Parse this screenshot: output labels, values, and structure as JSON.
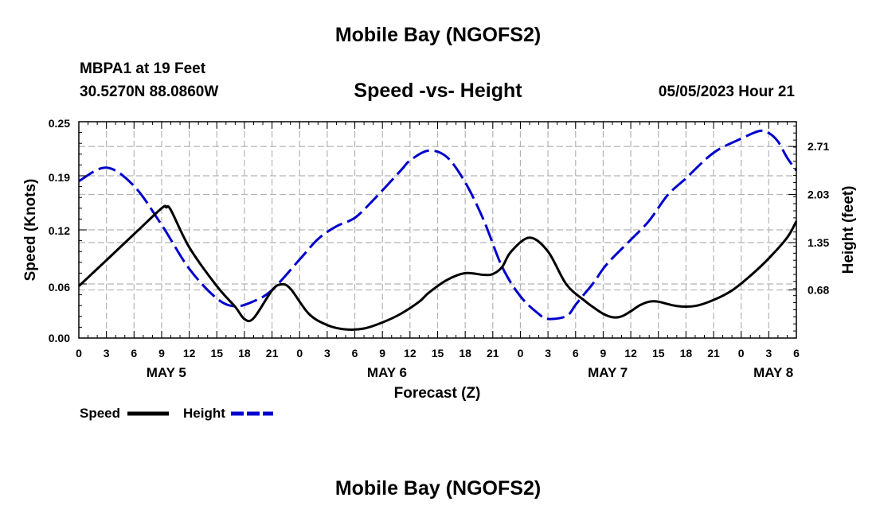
{
  "header": {
    "title": "Mobile Bay (NGOFS2)",
    "station": "MBPA1 at 19 Feet",
    "coordinates": "30.5270N  88.0860W",
    "subtitle": "Speed -vs- Height",
    "datetime": "05/05/2023 Hour 21"
  },
  "footer": {
    "title": "Mobile Bay (NGOFS2)"
  },
  "chart_data": {
    "type": "line",
    "title": "Speed -vs- Height",
    "xlabel": "Forecast (Z)",
    "ylabel": "Speed (Knots)",
    "y2label": "Height (feet)",
    "xlim": [
      0,
      78
    ],
    "ylim": [
      0,
      0.25
    ],
    "y2lim": [
      0,
      3.06
    ],
    "yticks": [
      "0.00",
      "0.06",
      "0.12",
      "0.19",
      "0.25"
    ],
    "y2ticks": [
      "0.68",
      "1.35",
      "2.03",
      "2.71"
    ],
    "y2tick_values": [
      0.68,
      1.35,
      2.03,
      2.71
    ],
    "xtick_labels": [
      "0",
      "3",
      "6",
      "9",
      "12",
      "15",
      "18",
      "21",
      "0",
      "3",
      "6",
      "9",
      "12",
      "15",
      "18",
      "21",
      "0",
      "3",
      "6",
      "9",
      "12",
      "15",
      "18",
      "21",
      "0",
      "3",
      "6"
    ],
    "date_labels": [
      {
        "label": "MAY 5",
        "x": 9.5
      },
      {
        "label": "MAY 6",
        "x": 33.5
      },
      {
        "label": "MAY 7",
        "x": 57.5
      },
      {
        "label": "MAY 8",
        "x": 75.5
      }
    ],
    "grid": true,
    "legend_position": "bottom-left",
    "series": [
      {
        "name": "Speed",
        "axis": "left",
        "color": "#000000",
        "style": "solid",
        "x": [
          0,
          3,
          6,
          9,
          9.5,
          10,
          12,
          15,
          17,
          18,
          19,
          21,
          22,
          23,
          25,
          27,
          29,
          31,
          33,
          35,
          37,
          38,
          40,
          42,
          44,
          45,
          46,
          47,
          49,
          51,
          53,
          55,
          56,
          57,
          58,
          59,
          60,
          61,
          62,
          63,
          65,
          67,
          69,
          71,
          73,
          75,
          77,
          78
        ],
        "y": [
          0.06,
          0.09,
          0.12,
          0.15,
          0.151,
          0.148,
          0.105,
          0.06,
          0.036,
          0.022,
          0.023,
          0.055,
          0.062,
          0.057,
          0.028,
          0.015,
          0.01,
          0.011,
          0.018,
          0.028,
          0.042,
          0.052,
          0.067,
          0.075,
          0.073,
          0.074,
          0.082,
          0.1,
          0.116,
          0.1,
          0.062,
          0.043,
          0.035,
          0.028,
          0.024,
          0.025,
          0.031,
          0.038,
          0.042,
          0.042,
          0.037,
          0.037,
          0.044,
          0.055,
          0.072,
          0.092,
          0.116,
          0.135
        ]
      },
      {
        "name": "Height",
        "axis": "right",
        "color": "#0000cc",
        "style": "dashed",
        "x": [
          0,
          3,
          6,
          9,
          12,
          15,
          17,
          19,
          21,
          24,
          26,
          28,
          30,
          32,
          35,
          36,
          38,
          40,
          42,
          44,
          46,
          48,
          50,
          51,
          53,
          54,
          55,
          56,
          57,
          58,
          60,
          62,
          64,
          66,
          69,
          72,
          74,
          75,
          76,
          77,
          78
        ],
        "y": [
          2.22,
          2.41,
          2.15,
          1.6,
          0.98,
          0.56,
          0.45,
          0.52,
          0.68,
          1.11,
          1.4,
          1.58,
          1.7,
          1.95,
          2.37,
          2.51,
          2.65,
          2.56,
          2.2,
          1.67,
          1.01,
          0.59,
          0.34,
          0.27,
          0.31,
          0.47,
          0.63,
          0.79,
          0.98,
          1.13,
          1.39,
          1.66,
          2.02,
          2.26,
          2.62,
          2.82,
          2.93,
          2.9,
          2.78,
          2.55,
          2.37
        ]
      }
    ]
  }
}
